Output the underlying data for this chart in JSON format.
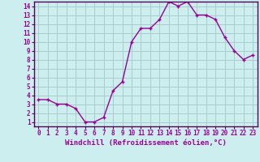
{
  "xlabel": "Windchill (Refroidissement éolien,°C)",
  "hours": [
    0,
    1,
    2,
    3,
    4,
    5,
    6,
    7,
    8,
    9,
    10,
    11,
    12,
    13,
    14,
    15,
    16,
    17,
    18,
    19,
    20,
    21,
    22,
    23
  ],
  "values": [
    3.5,
    3.5,
    3.0,
    3.0,
    2.5,
    1.0,
    1.0,
    1.5,
    4.5,
    5.5,
    10.0,
    11.5,
    11.5,
    12.5,
    14.5,
    14.0,
    14.5,
    13.0,
    13.0,
    12.5,
    10.5,
    9.0,
    8.0,
    8.5
  ],
  "line_color": "#990099",
  "marker": "+",
  "bg_color": "#cceeee",
  "grid_color": "#aacccc",
  "tick_label_color": "#990099",
  "axis_label_color": "#990099",
  "ylim": [
    0.5,
    14.5
  ],
  "yticks": [
    1,
    2,
    3,
    4,
    5,
    6,
    7,
    8,
    9,
    10,
    11,
    12,
    13,
    14
  ],
  "xlim": [
    -0.5,
    23.5
  ],
  "xticks": [
    0,
    1,
    2,
    3,
    4,
    5,
    6,
    7,
    8,
    9,
    10,
    11,
    12,
    13,
    14,
    15,
    16,
    17,
    18,
    19,
    20,
    21,
    22,
    23
  ],
  "xtick_labels": [
    "0",
    "1",
    "2",
    "3",
    "4",
    "5",
    "6",
    "7",
    "8",
    "9",
    "10",
    "11",
    "12",
    "13",
    "14",
    "15",
    "16",
    "17",
    "18",
    "19",
    "20",
    "21",
    "22",
    "23"
  ],
  "spine_color": "#550055",
  "xlabel_fontsize": 6.5,
  "tick_fontsize": 5.5
}
